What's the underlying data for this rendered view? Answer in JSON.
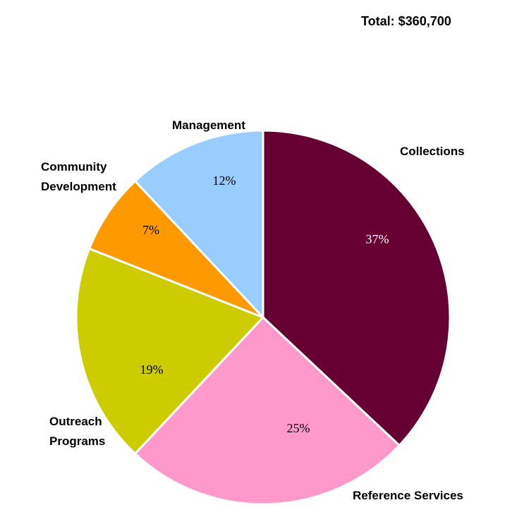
{
  "header": {
    "total_label": "Total: $360,700"
  },
  "chart_data": {
    "type": "pie",
    "title": "",
    "start_angle_deg": 0,
    "direction": "clockwise",
    "slices": [
      {
        "label": [
          "Collections"
        ],
        "value": 37,
        "display": "37%",
        "color": "#660033",
        "text_color": "#ffffff"
      },
      {
        "label": [
          "Reference Services"
        ],
        "value": 25,
        "display": "25%",
        "color": "#ff99cc",
        "text_color": "#000000"
      },
      {
        "label": [
          "Outreach",
          "Programs"
        ],
        "value": 19,
        "display": "19%",
        "color": "#cccc00",
        "text_color": "#000000"
      },
      {
        "label": [
          "Community",
          "Development"
        ],
        "value": 7,
        "display": "7%",
        "color": "#ff9900",
        "text_color": "#000000"
      },
      {
        "label": [
          "Management"
        ],
        "value": 12,
        "display": "12%",
        "color": "#99ccff",
        "text_color": "#000000"
      }
    ]
  }
}
